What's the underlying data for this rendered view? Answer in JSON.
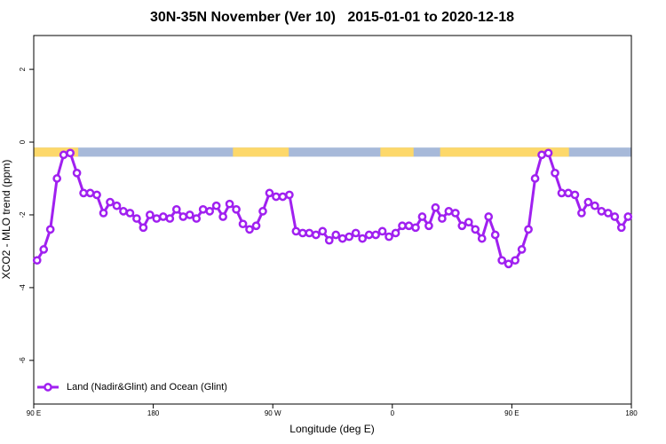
{
  "chart_data": {
    "type": "line",
    "title": "30N-35N November (Ver 10)   2015-01-01 to 2020-12-18",
    "xlabel": "Longitude (deg E)",
    "ylabel": "XCO2 - MLO trend (ppm)",
    "xlim": [
      90,
      540
    ],
    "ylim": [
      -7.2,
      2.93
    ],
    "xticks": [
      {
        "value": 90,
        "label": "90 E"
      },
      180,
      {
        "value": 270,
        "label": "90 W"
      },
      {
        "value": 360,
        "label": "0"
      },
      {
        "value": 450,
        "label": "90 E"
      },
      180.0001
    ],
    "yticks": [
      -6,
      -4,
      -2,
      0,
      2
    ],
    "legend": "bottom-left",
    "land_mask": {
      "ylim": [
        -0.4,
        -0.15
      ],
      "land_color": "#fdd86a",
      "ocean_color": "#a7b9d9",
      "land": [
        [
          90,
          123.5
        ],
        [
          240,
          282
        ],
        [
          351,
          376
        ],
        [
          396,
          493
        ]
      ]
    },
    "x": [
      92.5,
      97.5,
      102.5,
      107.5,
      112.5,
      117.5,
      122.5,
      127.5,
      132.5,
      137.5,
      142.5,
      147.5,
      152.5,
      157.5,
      162.5,
      167.5,
      172.5,
      177.5,
      182.5,
      187.5,
      192.5,
      197.5,
      202.5,
      207.5,
      212.5,
      217.5,
      222.5,
      227.5,
      232.5,
      237.5,
      242.5,
      247.5,
      252.5,
      257.5,
      262.5,
      267.5,
      272.5,
      277.5,
      282.5,
      287.5,
      292.5,
      297.5,
      302.5,
      307.5,
      312.5,
      317.5,
      322.5,
      327.5,
      332.5,
      337.5,
      342.5,
      347.5,
      352.5,
      357.5,
      362.5,
      367.5,
      372.5,
      377.5,
      382.5,
      387.5,
      392.5,
      397.5,
      402.5,
      407.5,
      412.5,
      417.5,
      422.5,
      427.5,
      432.5,
      437.5,
      442.5,
      447.5,
      452.5,
      457.5,
      462.5,
      467.5,
      472.5,
      477.5,
      482.5,
      487.5,
      492.5,
      497.5,
      502.5,
      507.5,
      512.5,
      517.5,
      522.5,
      527.5,
      532.5,
      537.5
    ],
    "series": [
      {
        "name": "Land (Nadir&Glint) and Ocean (Glint)",
        "color": "#a020f0",
        "values": [
          -3.25,
          -2.95,
          -2.4,
          -1.0,
          -0.35,
          -0.3,
          -0.85,
          -1.4,
          -1.4,
          -1.45,
          -1.95,
          -1.65,
          -1.75,
          -1.9,
          -1.95,
          -2.1,
          -2.35,
          -2.0,
          -2.1,
          -2.05,
          -2.1,
          -1.85,
          -2.05,
          -2.0,
          -2.1,
          -1.85,
          -1.9,
          -1.75,
          -2.05,
          -1.7,
          -1.85,
          -2.25,
          -2.4,
          -2.3,
          -1.9,
          -1.4,
          -1.5,
          -1.5,
          -1.45,
          -2.45,
          -2.5,
          -2.5,
          -2.55,
          -2.45,
          -2.7,
          -2.55,
          -2.65,
          -2.6,
          -2.5,
          -2.65,
          -2.55,
          -2.55,
          -2.45,
          -2.6,
          -2.5,
          -2.3,
          -2.3,
          -2.35,
          -2.05,
          -2.3,
          -1.8,
          -2.1,
          -1.9,
          -1.95,
          -2.3,
          -2.2,
          -2.4,
          -2.65,
          -2.05,
          -2.55,
          -3.25,
          -3.35,
          -3.25,
          -2.95,
          -2.4,
          -1.0,
          -0.35,
          -0.3,
          -0.85,
          -1.4,
          -1.4,
          -1.45,
          -1.95,
          -1.65,
          -1.75,
          -1.9,
          -1.95,
          -2.05,
          -2.35,
          -2.05
        ]
      }
    ]
  }
}
